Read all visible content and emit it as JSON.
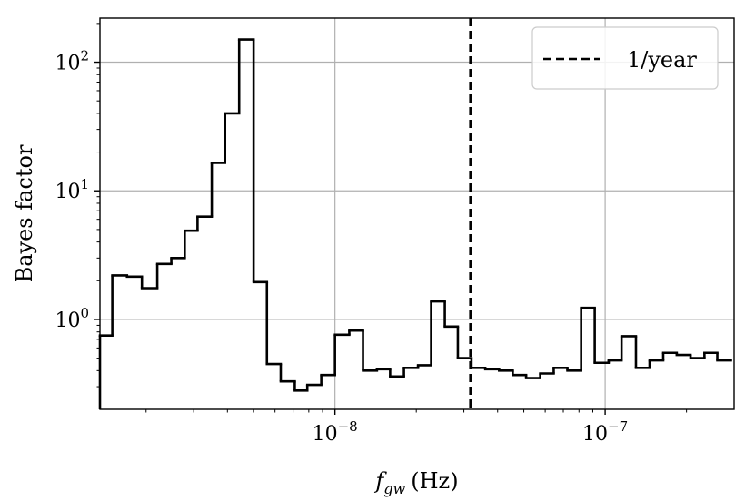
{
  "chart_data": {
    "type": "line",
    "style": "step",
    "xscale": "log",
    "yscale": "log",
    "xlabel": {
      "base": "f",
      "subscript": "gw",
      "unit": "(Hz)"
    },
    "ylabel": "Bayes factor",
    "xlim": [
      1.35e-09,
      3e-07
    ],
    "ylim": [
      0.2,
      220
    ],
    "x_ticks": [
      {
        "base": "10",
        "exp": "−8",
        "value": 1e-08
      },
      {
        "base": "10",
        "exp": "−7",
        "value": 1e-07
      }
    ],
    "y_ticks": [
      {
        "base": "10",
        "exp": "0",
        "value": 1
      },
      {
        "base": "10",
        "exp": "1",
        "value": 10
      },
      {
        "base": "10",
        "exp": "2",
        "value": 100
      }
    ],
    "grid": true,
    "line_color": "#000000",
    "grid_color": "#b0b0b0",
    "reference_line": {
      "x": 3.17e-08,
      "style": "dashed",
      "legend": "1/year"
    },
    "legend_position": "top-right",
    "bin_edges": [
      1.35e-09,
      1.5e-09,
      1.7e-09,
      1.93e-09,
      2.2e-09,
      2.48e-09,
      2.78e-09,
      3.1e-09,
      3.5e-09,
      3.92e-09,
      4.42e-09,
      5e-09,
      5.6e-09,
      6.3e-09,
      7.1e-09,
      7.9e-09,
      8.9e-09,
      1e-08,
      1.13e-08,
      1.27e-08,
      1.43e-08,
      1.6e-08,
      1.8e-08,
      2.03e-08,
      2.27e-08,
      2.55e-08,
      2.85e-08,
      3.2e-08,
      3.6e-08,
      4.05e-08,
      4.55e-08,
      5.1e-08,
      5.75e-08,
      6.45e-08,
      7.25e-08,
      8.15e-08,
      9.15e-08,
      1.03e-07,
      1.15e-07,
      1.3e-07,
      1.46e-07,
      1.64e-07,
      1.84e-07,
      2.07e-07,
      2.33e-07,
      2.6e-07,
      2.92e-07
    ],
    "values": [
      0.75,
      2.2,
      2.15,
      1.75,
      2.7,
      3.0,
      4.9,
      6.3,
      16.5,
      40,
      150,
      1.95,
      0.45,
      0.33,
      0.28,
      0.31,
      0.37,
      0.76,
      0.82,
      0.4,
      0.41,
      0.36,
      0.42,
      0.44,
      1.38,
      0.88,
      0.5,
      0.42,
      0.41,
      0.4,
      0.37,
      0.35,
      0.38,
      0.42,
      0.4,
      1.23,
      0.46,
      0.48,
      0.74,
      0.42,
      0.48,
      0.55,
      0.53,
      0.5,
      0.55,
      0.48
    ]
  }
}
